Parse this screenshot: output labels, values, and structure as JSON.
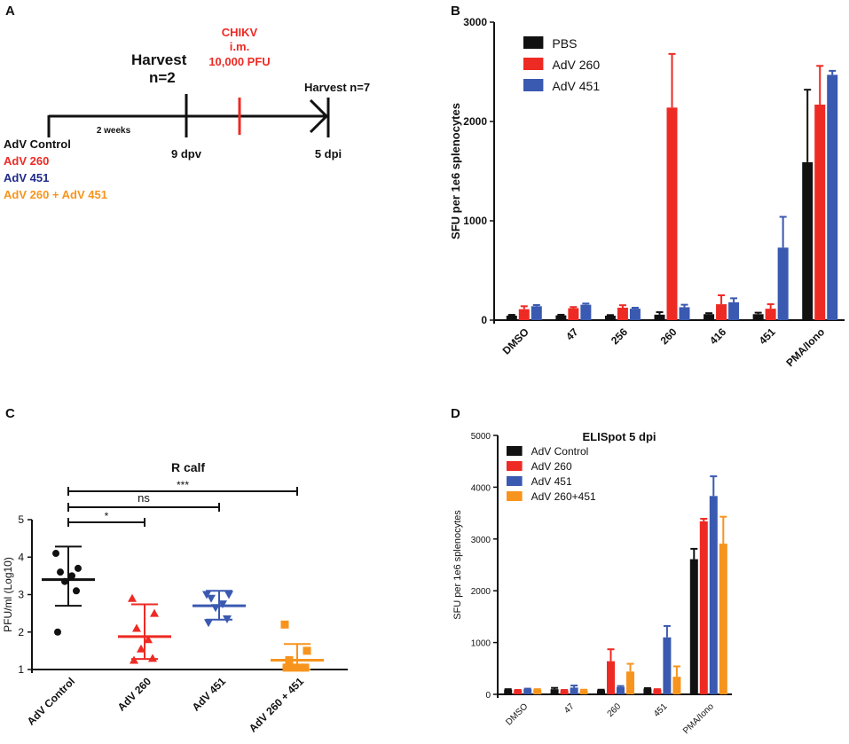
{
  "panel_labels": {
    "a": "A",
    "b": "B",
    "c": "C",
    "d": "D"
  },
  "timeline": {
    "harvest1_line1": "Harvest",
    "harvest1_line2": "n=2",
    "challenge_line1": "CHIKV",
    "challenge_line2": "i.m.",
    "challenge_line3": "10,000 PFU",
    "harvest2": "Harvest n=7",
    "interval": "2 weeks",
    "tick1": "9 dpv",
    "tick2": "5 dpi",
    "groups": [
      "AdV Control",
      "AdV 260",
      "AdV 451",
      "AdV 260 + AdV 451"
    ]
  },
  "colors": {
    "black": "#111111",
    "red": "#ee2a24",
    "blue": "#3a59b0",
    "orange": "#f7941d",
    "navy": "#1f2a8a"
  },
  "chart_data": [
    {
      "id": "B",
      "type": "bar",
      "title": "",
      "ylabel": "SFU per 1e6 splenocytes",
      "xlabel": "",
      "ylim": [
        0,
        3000
      ],
      "yticks": [
        0,
        1000,
        2000,
        3000
      ],
      "categories": [
        "DMSO",
        "47",
        "256",
        "260",
        "416",
        "451",
        "PMA/Iono"
      ],
      "legend_position": "top-left",
      "series": [
        {
          "name": "PBS",
          "color": "#111111",
          "values": [
            45,
            48,
            45,
            55,
            60,
            60,
            1590
          ],
          "errors": [
            8,
            6,
            6,
            25,
            10,
            15,
            730
          ]
        },
        {
          "name": "AdV 260",
          "color": "#ee2a24",
          "values": [
            110,
            120,
            125,
            2140,
            160,
            115,
            2170
          ],
          "errors": [
            30,
            12,
            25,
            540,
            90,
            45,
            390
          ]
        },
        {
          "name": "AdV 451",
          "color": "#3a59b0",
          "values": [
            140,
            155,
            115,
            130,
            180,
            730,
            2470
          ],
          "errors": [
            12,
            12,
            10,
            25,
            40,
            310,
            40
          ]
        }
      ]
    },
    {
      "id": "C",
      "type": "scatter",
      "title": "R calf",
      "ylabel": "PFU/ml (Log10)",
      "xlabel": "",
      "ylim": [
        1,
        5
      ],
      "yticks": [
        1,
        2,
        3,
        4,
        5
      ],
      "categories": [
        "AdV Control",
        "AdV 260",
        "AdV 451",
        "AdV 260 + 451"
      ],
      "groups": [
        {
          "name": "AdV Control",
          "color": "#111111",
          "marker": "circle",
          "points": [
            4.1,
            3.7,
            3.6,
            3.5,
            3.35,
            3.1,
            2.0
          ],
          "mean": 3.4,
          "sd_low": 2.7,
          "sd_high": 4.28
        },
        {
          "name": "AdV 260",
          "color": "#ee2a24",
          "marker": "triangle",
          "points": [
            2.9,
            2.5,
            2.1,
            1.8,
            1.55,
            1.3,
            1.25
          ],
          "mean": 1.88,
          "sd_low": 1.28,
          "sd_high": 2.74
        },
        {
          "name": "AdV 451",
          "color": "#3a59b0",
          "marker": "triangle-down",
          "points": [
            3.0,
            3.0,
            2.9,
            2.75,
            2.65,
            2.35,
            2.25
          ],
          "mean": 2.7,
          "sd_low": 2.33,
          "sd_high": 3.1
        },
        {
          "name": "AdV 260 + 451",
          "color": "#f7941d",
          "marker": "square",
          "points": [
            2.2,
            1.5,
            1.25,
            1.05,
            1.05,
            1.05,
            1.05
          ],
          "mean": 1.25,
          "sd_low": 1.0,
          "sd_high": 1.68
        }
      ],
      "comparisons": [
        {
          "from": "AdV Control",
          "to": "AdV 260",
          "label": "*"
        },
        {
          "from": "AdV Control",
          "to": "AdV 451",
          "label": "ns"
        },
        {
          "from": "AdV Control",
          "to": "AdV 260 + 451",
          "label": "***"
        }
      ]
    },
    {
      "id": "D",
      "type": "bar",
      "title": "ELISpot 5 dpi",
      "ylabel": "SFU per 1e6 splenocytes",
      "xlabel": "",
      "ylim": [
        0,
        5000
      ],
      "yticks": [
        0,
        1000,
        2000,
        3000,
        4000,
        5000
      ],
      "categories": [
        "DMSO",
        "47",
        "260",
        "451",
        "PMA/Iono"
      ],
      "legend_position": "top-left",
      "series": [
        {
          "name": "AdV Control",
          "color": "#111111",
          "values": [
            90,
            100,
            80,
            110,
            2610
          ],
          "errors": [
            10,
            25,
            10,
            10,
            200
          ]
        },
        {
          "name": "AdV 260",
          "color": "#ee2a24",
          "values": [
            80,
            75,
            640,
            90,
            3340
          ],
          "errors": [
            5,
            10,
            230,
            10,
            50
          ]
        },
        {
          "name": "AdV 451",
          "color": "#3a59b0",
          "values": [
            100,
            130,
            140,
            1100,
            3830
          ],
          "errors": [
            10,
            40,
            20,
            220,
            380
          ]
        },
        {
          "name": "AdV 260+451",
          "color": "#f7941d",
          "values": [
            90,
            75,
            440,
            340,
            2910
          ],
          "errors": [
            10,
            15,
            150,
            200,
            520
          ]
        }
      ]
    }
  ]
}
